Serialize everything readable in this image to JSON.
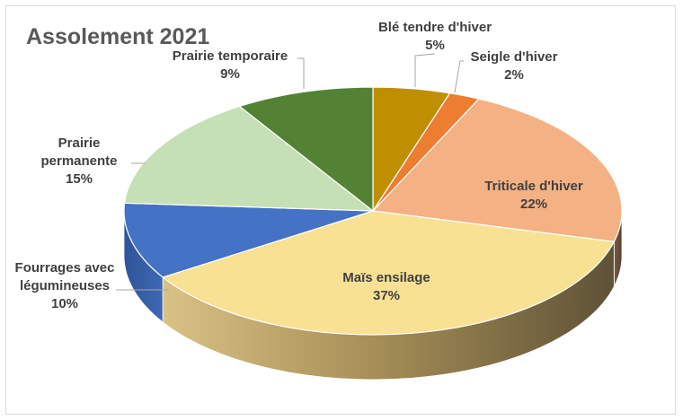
{
  "chart_data": {
    "type": "pie",
    "title": "Assolement 2021",
    "slices": [
      {
        "label": "Blé tendre d'hiver",
        "value": 5,
        "display": "5%",
        "color": "#BF8F00"
      },
      {
        "label": "Seigle d'hiver",
        "value": 2,
        "display": "2%",
        "color": "#ED7D31"
      },
      {
        "label": "Triticale d'hiver",
        "value": 22,
        "display": "22%",
        "color": "#F4B183"
      },
      {
        "label": "Maïs ensilage",
        "value": 37,
        "display": "37%",
        "color": "#F9E194"
      },
      {
        "label": "Fourrages avec légumineuses",
        "value": 10,
        "display": "10%",
        "color": "#4472C4"
      },
      {
        "label": "Prairie permanente",
        "value": 15,
        "display": "15%",
        "color": "#C5E0B4"
      },
      {
        "label": "Prairie temporaire",
        "value": 9,
        "display": "9%",
        "color": "#548235"
      }
    ]
  }
}
